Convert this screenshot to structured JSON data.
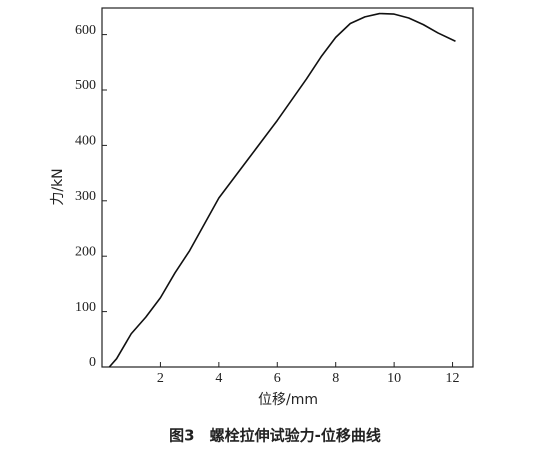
{
  "chart_data": {
    "type": "line",
    "caption": "图3　螺栓拉伸试验力-位移曲线",
    "x_label": "位移/mm",
    "y_label": "力/kN",
    "series": [
      {
        "color": "#111111",
        "x": [
          0.25,
          0.5,
          1,
          1.5,
          2,
          2.5,
          3,
          4,
          5,
          6,
          7,
          7.5,
          8,
          8.5,
          9,
          9.5,
          10,
          10.5,
          11,
          11.5,
          12.1
        ],
        "values": [
          0,
          15,
          60,
          90,
          125,
          170,
          210,
          305,
          375,
          445,
          520,
          560,
          595,
          620,
          632,
          638,
          637,
          630,
          618,
          603,
          588
        ]
      }
    ],
    "xlim": [
      0,
      12.7
    ],
    "xticks": [
      2,
      4,
      6,
      8,
      10,
      12
    ],
    "ylim": [
      0,
      648
    ],
    "yticks": [
      0,
      100,
      200,
      300,
      400,
      500,
      600
    ],
    "grid": false
  }
}
